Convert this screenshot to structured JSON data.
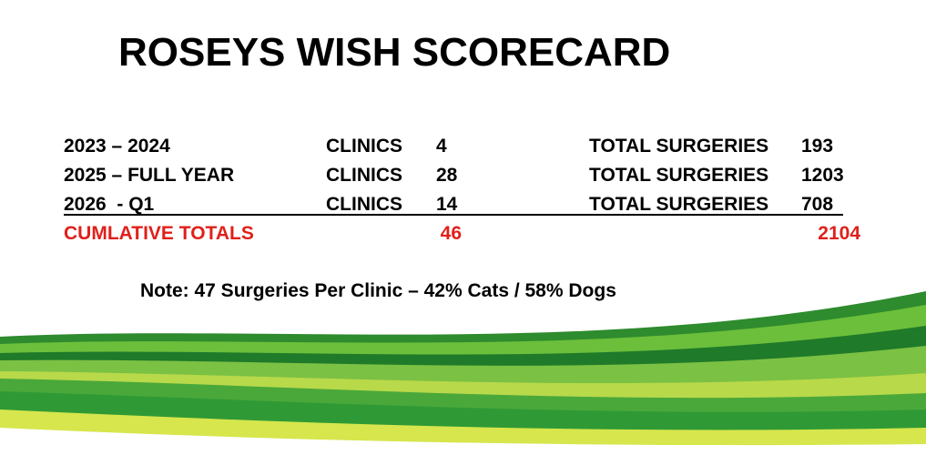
{
  "title": "ROSEYS WISH SCORECARD",
  "rows": [
    {
      "period": "2023 – 2024",
      "clinics_label": "CLINICS",
      "clinics": 4,
      "surgeries_label": "TOTAL SURGERIES",
      "surgeries": 193
    },
    {
      "period": "2025 – FULL YEAR",
      "clinics_label": "CLINICS",
      "clinics": 28,
      "surgeries_label": "TOTAL SURGERIES",
      "surgeries": 1203
    },
    {
      "period": "2026  - Q1",
      "clinics_label": "CLINICS",
      "clinics": 14,
      "surgeries_label": "TOTAL SURGERIES",
      "surgeries": 708
    }
  ],
  "totals": {
    "label": "CUMLATIVE TOTALS",
    "clinics": 46,
    "surgeries": 2104
  },
  "note": "Note: 47 Surgeries Per Clinic – 42% Cats / 58% Dogs"
}
